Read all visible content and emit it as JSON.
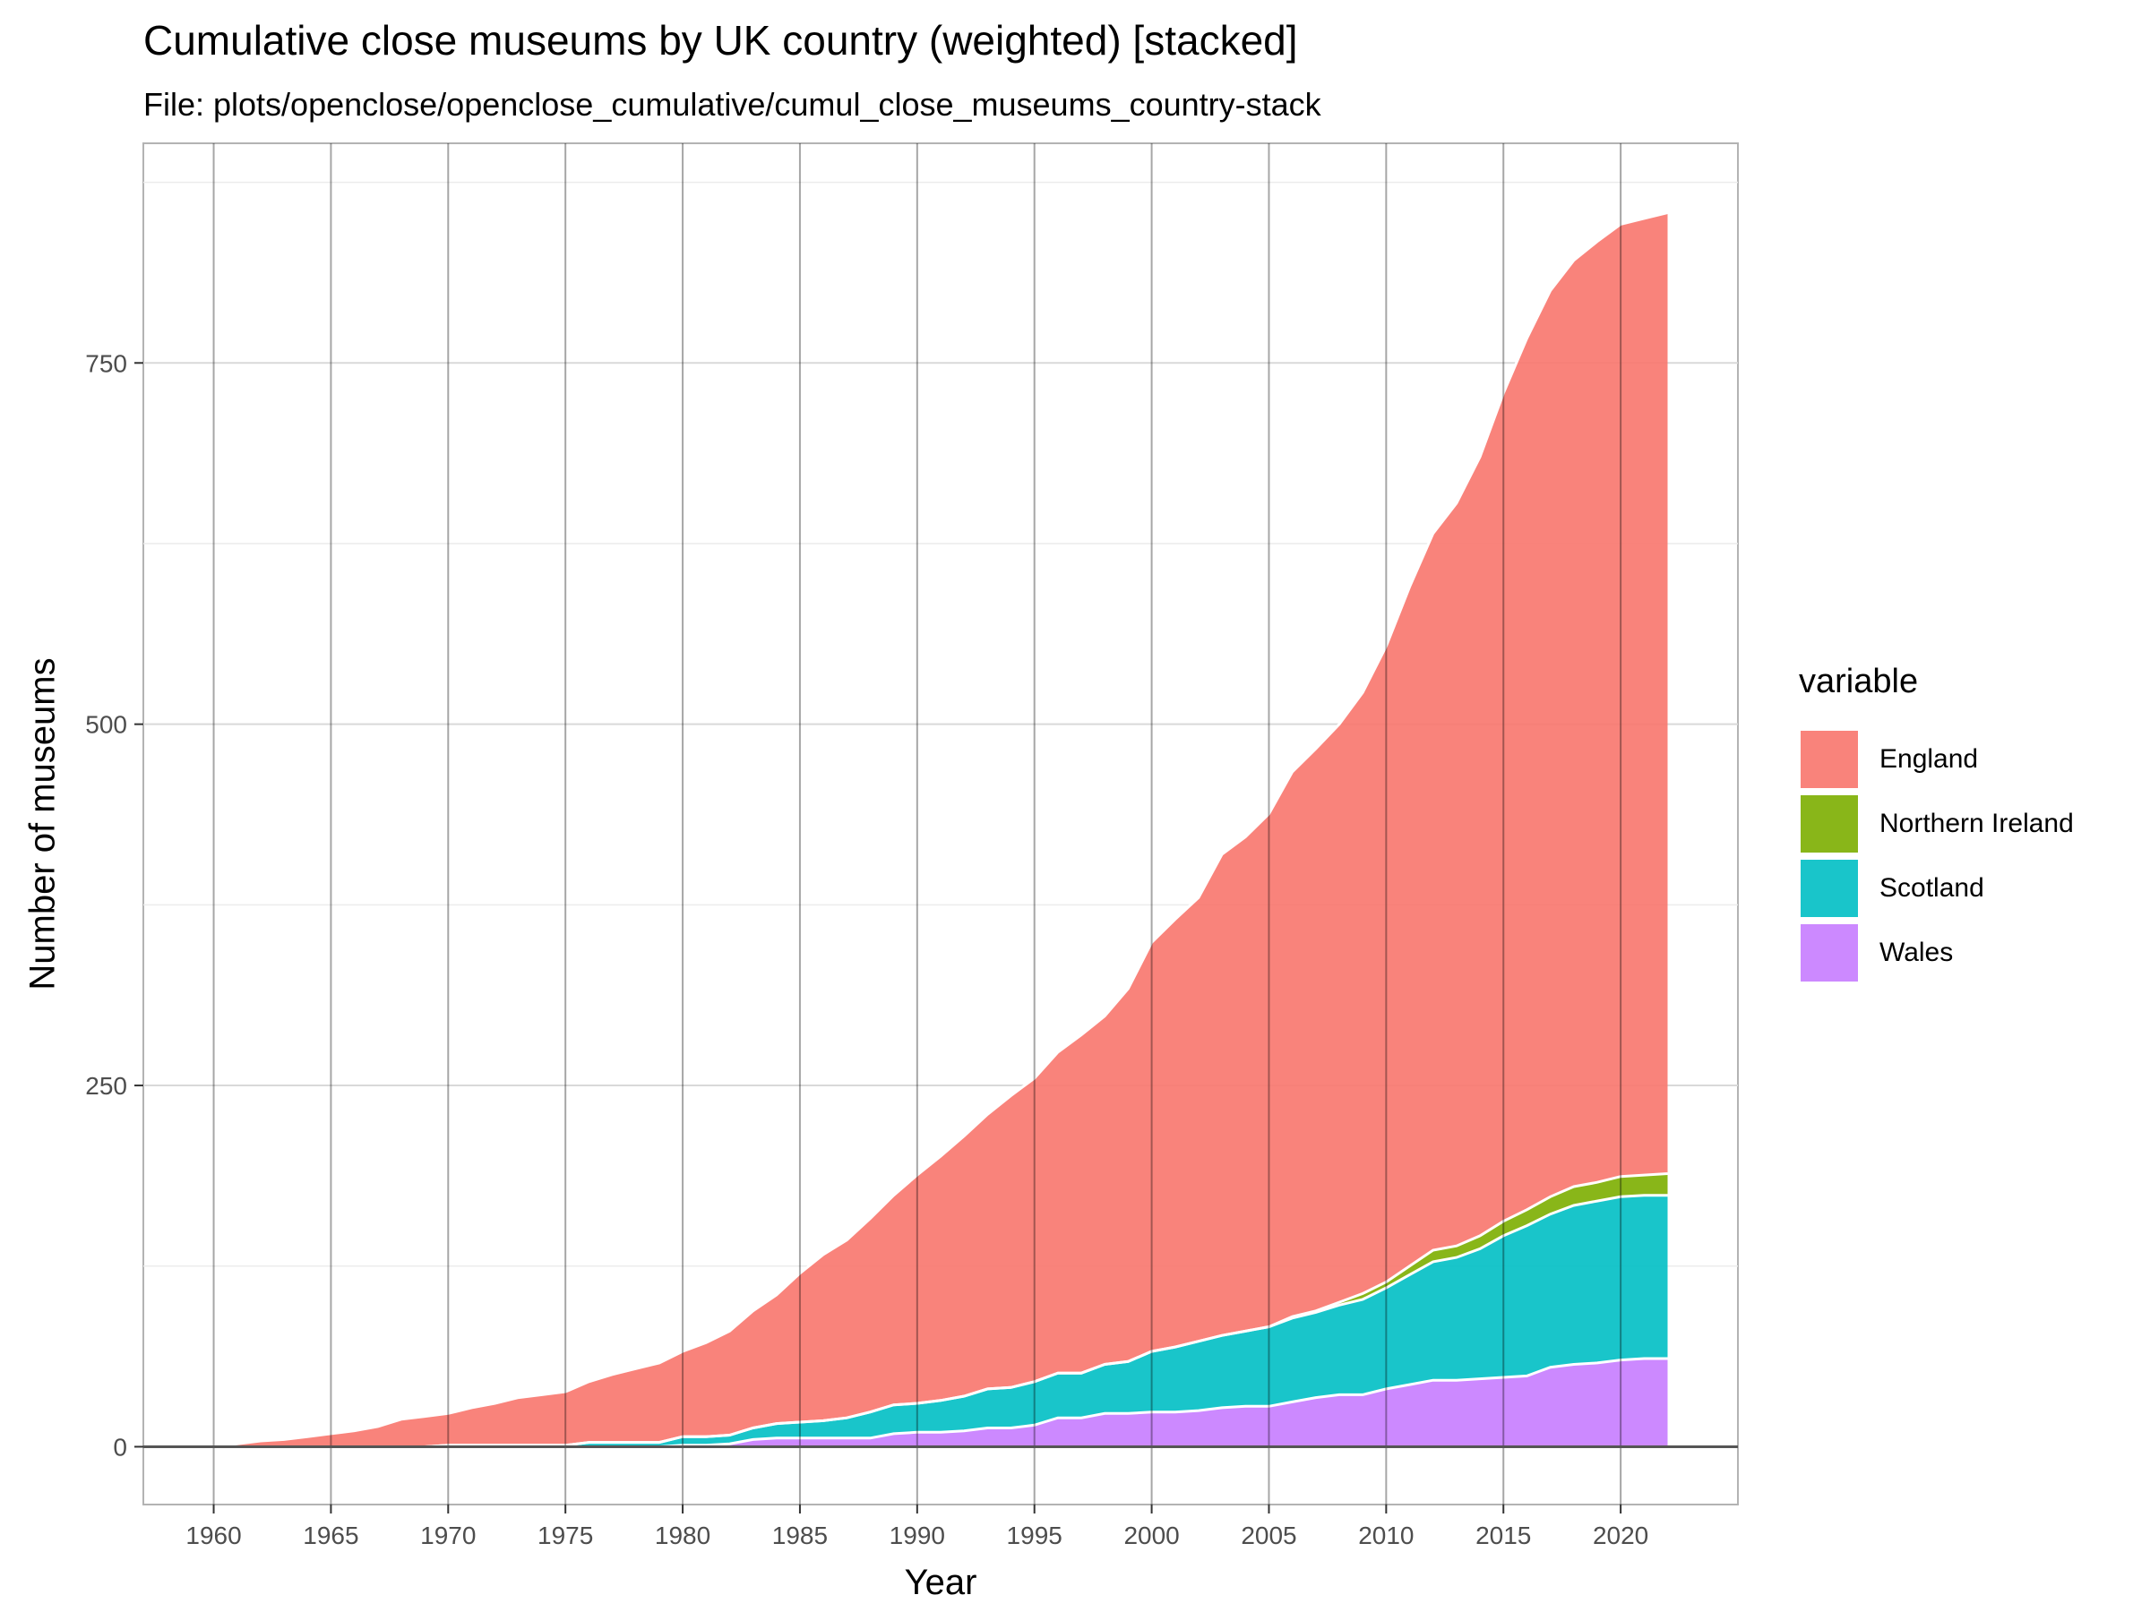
{
  "title": "Cumulative close museums by UK country (weighted) [stacked]",
  "subtitle": "File: plots/openclose/openclose_cumulative/cumul_close_museums_country-stack",
  "chart_data": {
    "type": "area",
    "stacked": true,
    "xlabel": "Year",
    "ylabel": "Number of museums",
    "xlim": [
      1957,
      2025
    ],
    "ylim": [
      -40,
      902
    ],
    "x_ticks": [
      1960,
      1965,
      1970,
      1975,
      1980,
      1985,
      1990,
      1995,
      2000,
      2005,
      2010,
      2015,
      2020
    ],
    "y_ticks": [
      0,
      250,
      500,
      750
    ],
    "grid": true,
    "legend_title": "variable",
    "legend_position": "right",
    "x": [
      1960,
      1961,
      1962,
      1963,
      1964,
      1965,
      1966,
      1967,
      1968,
      1969,
      1970,
      1971,
      1972,
      1973,
      1974,
      1975,
      1976,
      1977,
      1978,
      1979,
      1980,
      1981,
      1982,
      1983,
      1984,
      1985,
      1986,
      1987,
      1988,
      1989,
      1990,
      1991,
      1992,
      1993,
      1994,
      1995,
      1996,
      1997,
      1998,
      1999,
      2000,
      2001,
      2002,
      2003,
      2004,
      2005,
      2006,
      2007,
      2008,
      2009,
      2010,
      2011,
      2012,
      2013,
      2014,
      2015,
      2016,
      2017,
      2018,
      2019,
      2020,
      2021,
      2022
    ],
    "series": [
      {
        "name": "Wales",
        "color": "#C77CFF",
        "values": [
          0,
          0,
          0,
          0,
          0,
          0,
          0,
          0,
          0,
          0,
          0,
          0,
          0,
          0,
          0,
          0,
          0,
          0,
          0,
          0,
          1,
          1,
          2,
          5,
          6,
          6,
          6,
          6,
          6,
          9,
          10,
          10,
          11,
          13,
          13,
          15,
          20,
          20,
          23,
          23,
          24,
          24,
          25,
          27,
          28,
          28,
          31,
          34,
          36,
          36,
          40,
          43,
          46,
          46,
          47,
          48,
          49,
          55,
          57,
          58,
          60,
          61,
          61
        ]
      },
      {
        "name": "Scotland",
        "color": "#00BFC4",
        "values": [
          0,
          0,
          0,
          0,
          0,
          0,
          0,
          0,
          0,
          0,
          1,
          1,
          1,
          1,
          1,
          1,
          3,
          3,
          3,
          3,
          6,
          6,
          6,
          8,
          10,
          11,
          12,
          14,
          18,
          20,
          20,
          22,
          24,
          27,
          28,
          30,
          31,
          31,
          34,
          36,
          42,
          45,
          48,
          50,
          52,
          55,
          58,
          59,
          62,
          66,
          70,
          76,
          82,
          85,
          90,
          98,
          104,
          106,
          110,
          112,
          113,
          113,
          113
        ]
      },
      {
        "name": "Northern Ireland",
        "color": "#7CAE00",
        "values": [
          0,
          0,
          0,
          0,
          0,
          0,
          0,
          0,
          0,
          0,
          0,
          0,
          0,
          0,
          0,
          0,
          0,
          0,
          0,
          0,
          0,
          0,
          0,
          0,
          0,
          0,
          0,
          0,
          0,
          0,
          0,
          0,
          0,
          0,
          0,
          0,
          0,
          0,
          0,
          0,
          0,
          0,
          0,
          0,
          0,
          0,
          1,
          1,
          2,
          4,
          4,
          6,
          8,
          8,
          9,
          10,
          11,
          12,
          13,
          13,
          14,
          14,
          15
        ]
      },
      {
        "name": "England",
        "color": "#F8766D",
        "values": [
          0,
          2,
          4,
          5,
          7,
          9,
          11,
          14,
          19,
          21,
          22,
          26,
          29,
          33,
          35,
          37,
          42,
          47,
          51,
          55,
          59,
          65,
          72,
          81,
          89,
          103,
          115,
          123,
          134,
          145,
          158,
          169,
          180,
          190,
          202,
          210,
          222,
          234,
          241,
          258,
          283,
          296,
          307,
          333,
          342,
          355,
          377,
          389,
          400,
          416,
          440,
          470,
          496,
          514,
          539,
          573,
          603,
          627,
          641,
          651,
          659,
          662,
          665
        ]
      }
    ]
  }
}
